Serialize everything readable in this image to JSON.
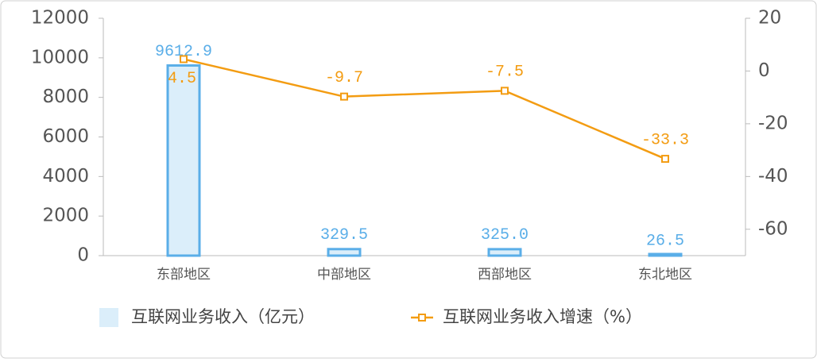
{
  "chart_data": {
    "type": "bar-line",
    "categories": [
      "东部地区",
      "中部地区",
      "西部地区",
      "东北地区"
    ],
    "series": [
      {
        "name": "互联网业务收入（亿元）",
        "type": "bar",
        "color": "#5aaee8",
        "fill": "#dbeefa",
        "values": [
          9612.9,
          329.5,
          325.0,
          26.5
        ],
        "value_labels": [
          "9612.9",
          "329.5",
          "325.0",
          "26.5"
        ]
      },
      {
        "name": "互联网业务收入增速（%）",
        "type": "line",
        "axis": "y2",
        "color": "#f39c12",
        "values": [
          4.5,
          -9.7,
          -7.5,
          -33.3
        ]
      }
    ],
    "ylim": [
      0,
      12000
    ],
    "yticks": [
      0,
      2000,
      4000,
      6000,
      8000,
      10000,
      12000
    ],
    "y2lim": [
      -70,
      20
    ],
    "y2ticks": [
      -60,
      -40,
      -20,
      0,
      20
    ]
  }
}
